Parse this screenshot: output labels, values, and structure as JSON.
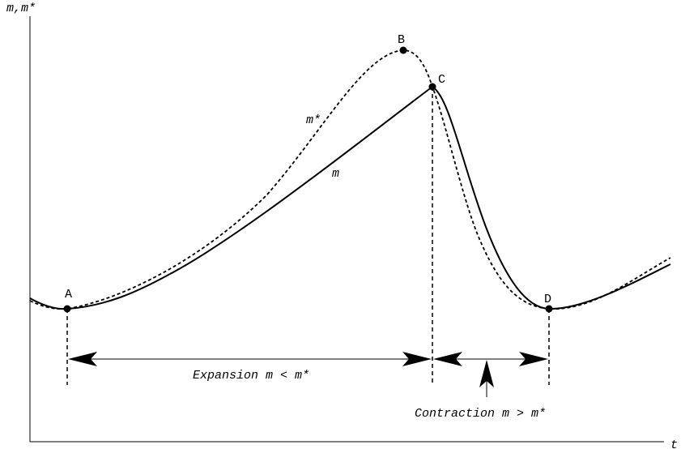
{
  "axes": {
    "y_label": "m,m*",
    "x_label": "t"
  },
  "points": [
    {
      "label": "A"
    },
    {
      "label": "B"
    },
    {
      "label": "C"
    },
    {
      "label": "D"
    }
  ],
  "curve_labels": {
    "m_star": "m*",
    "m": "m"
  },
  "phases": {
    "expansion": "Expansion m < m*",
    "contraction": "Contraction m > m*"
  }
}
